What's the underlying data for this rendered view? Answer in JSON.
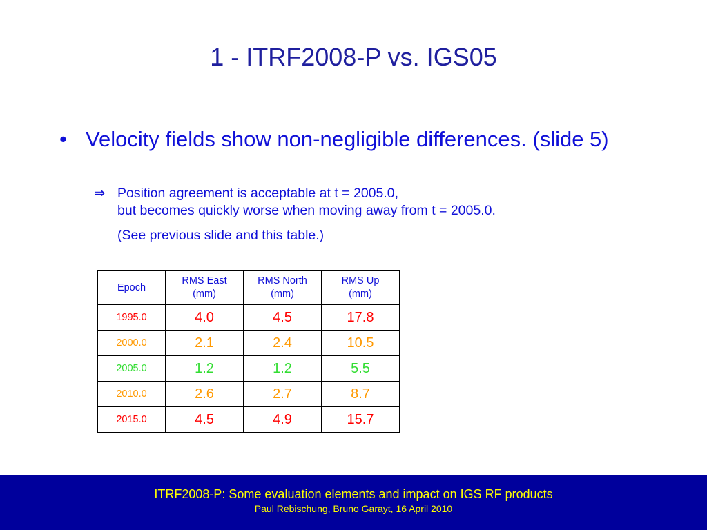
{
  "title": "1 - ITRF2008-P vs. IGS05",
  "bullet": {
    "symbol": "•",
    "text": "Velocity fields show non-negligible differences. (slide 5)"
  },
  "sub": {
    "arrow": "⇒",
    "line1": "Position agreement is acceptable at t = 2005.0,",
    "line2": "but becomes quickly worse when moving away from t = 2005.0.",
    "note": "(See previous slide and this table.)"
  },
  "table": {
    "headers": [
      {
        "line1": "Epoch",
        "line2": ""
      },
      {
        "line1": "RMS East",
        "line2": "(mm)"
      },
      {
        "line1": "RMS North",
        "line2": "(mm)"
      },
      {
        "line1": "RMS Up",
        "line2": "(mm)"
      }
    ],
    "rows": [
      {
        "epoch": "1995.0",
        "east": "4.0",
        "north": "4.5",
        "up": "17.8",
        "color": "#ff0000"
      },
      {
        "epoch": "2000.0",
        "east": "2.1",
        "north": "2.4",
        "up": "10.5",
        "color": "#ff9900"
      },
      {
        "epoch": "2005.0",
        "east": "1.2",
        "north": "1.2",
        "up": "5.5",
        "color": "#33dd33"
      },
      {
        "epoch": "2010.0",
        "east": "2.6",
        "north": "2.7",
        "up": "8.7",
        "color": "#ff9900"
      },
      {
        "epoch": "2015.0",
        "east": "4.5",
        "north": "4.9",
        "up": "15.7",
        "color": "#ff0000"
      }
    ]
  },
  "footer": {
    "title": "ITRF2008-P: Some evaluation elements and impact on IGS RF products",
    "authors": "Paul Rebischung, Bruno Garayt, 16 April 2010"
  },
  "colors": {
    "title": "#1f1f9e",
    "body_text": "#1010d8",
    "footer_bg": "#00009c",
    "footer_text": "#ffff00"
  }
}
